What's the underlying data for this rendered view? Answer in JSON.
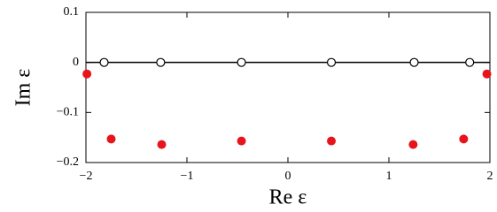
{
  "chart_data": {
    "type": "scatter",
    "xlabel": "Re ε",
    "ylabel": "Im ε",
    "xlim": [
      -2,
      2
    ],
    "ylim": [
      -0.2,
      0.1
    ],
    "xticks": [
      {
        "value": -2,
        "label": "−2"
      },
      {
        "value": -1,
        "label": "−1"
      },
      0,
      1,
      2
    ],
    "yticks": [
      {
        "value": -0.2,
        "label": "−0.2"
      },
      {
        "value": -0.1,
        "label": "−0.1"
      },
      0,
      0.1
    ],
    "zero_line": true,
    "series": [
      {
        "color": "#000000",
        "filled": false,
        "x": [
          -1.82,
          -1.26,
          -0.46,
          0.43,
          1.25,
          1.8
        ],
        "values": [
          0,
          0,
          0,
          0,
          0,
          0
        ]
      },
      {
        "color": "#e8141c",
        "filled": true,
        "x": [
          -1.99,
          -1.75,
          -1.25,
          -0.46,
          0.43,
          1.24,
          1.74,
          1.97
        ],
        "values": [
          -0.023,
          -0.153,
          -0.164,
          -0.157,
          -0.157,
          -0.164,
          -0.153,
          -0.023
        ]
      }
    ]
  }
}
